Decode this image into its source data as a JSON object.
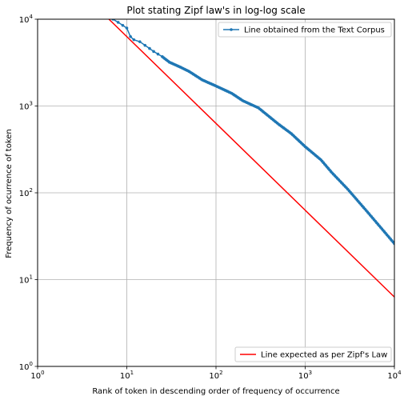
{
  "chart_data": {
    "type": "line",
    "title": "Plot stating Zipf law's in log-log scale",
    "xlabel": "Rank of token in descending order of frequency of occurrence",
    "ylabel": "Frequency of ocurrence of token",
    "xscale": "log",
    "yscale": "log",
    "xlim": [
      1,
      10000
    ],
    "ylim": [
      1,
      10000
    ],
    "grid": true,
    "x_ticks": [
      1,
      10,
      100,
      1000,
      10000
    ],
    "y_ticks": [
      1,
      10,
      100,
      1000,
      10000
    ],
    "x_tick_labels": [
      {
        "base": "10",
        "exp": "0"
      },
      {
        "base": "10",
        "exp": "1"
      },
      {
        "base": "10",
        "exp": "2"
      },
      {
        "base": "10",
        "exp": "3"
      },
      {
        "base": "10",
        "exp": "4"
      }
    ],
    "y_tick_labels": [
      {
        "base": "10",
        "exp": "0"
      },
      {
        "base": "10",
        "exp": "1"
      },
      {
        "base": "10",
        "exp": "2"
      },
      {
        "base": "10",
        "exp": "3"
      },
      {
        "base": "10",
        "exp": "4"
      }
    ],
    "series": [
      {
        "name": "Line obtained from the Text Corpus",
        "color": "#1f77b4",
        "marker": "dot",
        "x": [
          7,
          8,
          9,
          10,
          11,
          12,
          14,
          16,
          18,
          20,
          25,
          30,
          40,
          50,
          70,
          100,
          150,
          200,
          300,
          500,
          700,
          1000,
          1500,
          2000,
          3000,
          5000,
          7000,
          10000
        ],
        "y": [
          10000,
          9200,
          8500,
          7900,
          6300,
          5800,
          5500,
          5000,
          4600,
          4250,
          3700,
          3200,
          2800,
          2500,
          2000,
          1700,
          1400,
          1150,
          950,
          620,
          480,
          340,
          240,
          170,
          110,
          60,
          40,
          26
        ]
      },
      {
        "name": "Line expected as per Zipf's Law",
        "color": "#ff0000",
        "marker": "none",
        "x": [
          6.3,
          10000
        ],
        "y": [
          10000,
          6.3
        ]
      }
    ],
    "legends": [
      {
        "series": 0,
        "placement": "upper-right"
      },
      {
        "series": 1,
        "placement": "lower-right"
      }
    ]
  }
}
